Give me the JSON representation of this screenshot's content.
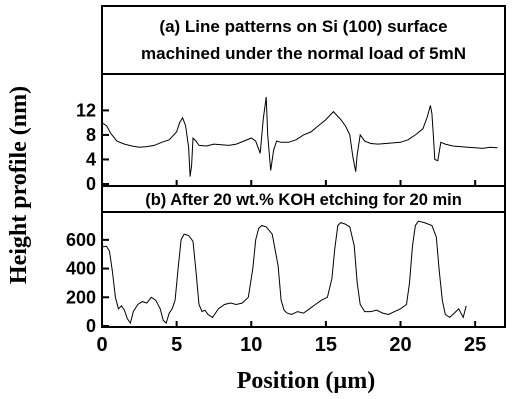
{
  "chart_data": {
    "y_axis_label": "Height profile (nm)",
    "x_axis": {
      "label": "Position (µm)",
      "range": [
        0,
        27
      ],
      "ticks": [
        0,
        5,
        10,
        15,
        20,
        25
      ],
      "tick_labels": [
        "0",
        "5",
        "10",
        "15",
        "20",
        "25"
      ]
    },
    "panels": [
      {
        "type": "line",
        "title": "(a) Line patterns on Si (100) surface machined under the normal load of 5mN",
        "title_lines": [
          "(a) Line patterns on Si (100) surface",
          "machined under the normal load of 5mN"
        ],
        "ylim": [
          0,
          15
        ],
        "yticks": [
          0,
          4,
          8,
          12
        ],
        "ytick_labels": [
          "0",
          "4",
          "8",
          "12"
        ],
        "x": [
          0.0,
          0.3,
          0.6,
          1.0,
          1.5,
          2.0,
          2.5,
          3.0,
          3.5,
          4.0,
          4.5,
          5.0,
          5.2,
          5.4,
          5.6,
          5.8,
          5.9,
          6.0,
          6.1,
          6.3,
          6.5,
          7.0,
          7.5,
          8.0,
          8.5,
          9.0,
          9.5,
          10.0,
          10.3,
          10.6,
          10.8,
          11.0,
          11.1,
          11.3,
          11.5,
          11.7,
          12.0,
          12.5,
          13.0,
          13.5,
          14.0,
          14.5,
          15.0,
          15.5,
          16.0,
          16.3,
          16.6,
          16.8,
          17.0,
          17.1,
          17.3,
          17.6,
          18.0,
          18.5,
          19.0,
          19.5,
          20.0,
          20.5,
          21.0,
          21.5,
          21.8,
          22.0,
          22.1,
          22.2,
          22.3,
          22.5,
          22.7,
          23.0,
          23.5,
          24.0,
          24.5,
          25.0,
          25.5,
          26.0,
          26.5
        ],
        "y": [
          10.0,
          9.5,
          8.2,
          7.0,
          6.5,
          6.2,
          6.0,
          6.1,
          6.3,
          6.8,
          7.2,
          8.5,
          10.0,
          10.8,
          9.5,
          6.0,
          1.2,
          3.0,
          7.5,
          7.0,
          6.3,
          6.2,
          6.5,
          6.4,
          6.3,
          6.5,
          7.0,
          7.5,
          7.0,
          5.0,
          10.5,
          14.2,
          8.0,
          2.2,
          5.5,
          7.0,
          6.8,
          6.8,
          7.2,
          8.0,
          8.5,
          9.5,
          10.5,
          11.8,
          10.5,
          9.5,
          8.0,
          4.5,
          2.0,
          4.8,
          8.0,
          7.0,
          6.6,
          6.5,
          6.6,
          6.7,
          6.8,
          7.2,
          8.0,
          9.0,
          11.0,
          12.8,
          11.5,
          7.8,
          4.0,
          3.8,
          6.8,
          6.5,
          6.2,
          6.1,
          6.0,
          5.9,
          5.8,
          6.0,
          5.9
        ]
      },
      {
        "type": "line",
        "title": "(b) After 20 wt.% KOH etching for 20 min",
        "ylim": [
          0,
          780
        ],
        "yticks": [
          0,
          200,
          400,
          600
        ],
        "ytick_labels": [
          "0",
          "200",
          "400",
          "600"
        ],
        "x": [
          0.0,
          0.3,
          0.5,
          0.7,
          0.9,
          1.1,
          1.3,
          1.5,
          1.7,
          1.9,
          2.1,
          2.4,
          2.7,
          3.0,
          3.3,
          3.6,
          3.9,
          4.1,
          4.3,
          4.5,
          4.7,
          4.9,
          5.1,
          5.3,
          5.5,
          5.8,
          6.1,
          6.3,
          6.5,
          6.7,
          6.9,
          7.1,
          7.4,
          7.8,
          8.2,
          8.6,
          9.0,
          9.4,
          9.8,
          10.1,
          10.3,
          10.5,
          10.7,
          11.0,
          11.4,
          11.8,
          12.0,
          12.2,
          12.4,
          12.7,
          13.1,
          13.5,
          13.9,
          14.3,
          14.7,
          15.1,
          15.4,
          15.6,
          15.8,
          16.0,
          16.3,
          16.6,
          16.9,
          17.1,
          17.3,
          17.6,
          18.0,
          18.4,
          18.8,
          19.2,
          19.6,
          20.0,
          20.4,
          20.6,
          20.8,
          21.0,
          21.2,
          21.6,
          22.1,
          22.4,
          22.6,
          22.8,
          23.0,
          23.3,
          23.6,
          23.9,
          24.2,
          24.4
        ],
        "y": [
          550,
          555,
          520,
          380,
          200,
          120,
          140,
          110,
          50,
          20,
          100,
          150,
          170,
          160,
          200,
          180,
          120,
          40,
          20,
          90,
          120,
          180,
          400,
          600,
          640,
          630,
          590,
          380,
          150,
          100,
          110,
          80,
          60,
          120,
          150,
          160,
          150,
          160,
          200,
          400,
          600,
          680,
          700,
          690,
          640,
          420,
          180,
          110,
          90,
          80,
          100,
          90,
          120,
          150,
          180,
          200,
          330,
          540,
          700,
          720,
          710,
          690,
          560,
          300,
          150,
          100,
          100,
          110,
          90,
          80,
          100,
          120,
          150,
          300,
          560,
          700,
          730,
          720,
          700,
          620,
          380,
          180,
          80,
          60,
          90,
          120,
          60,
          140
        ]
      }
    ]
  }
}
